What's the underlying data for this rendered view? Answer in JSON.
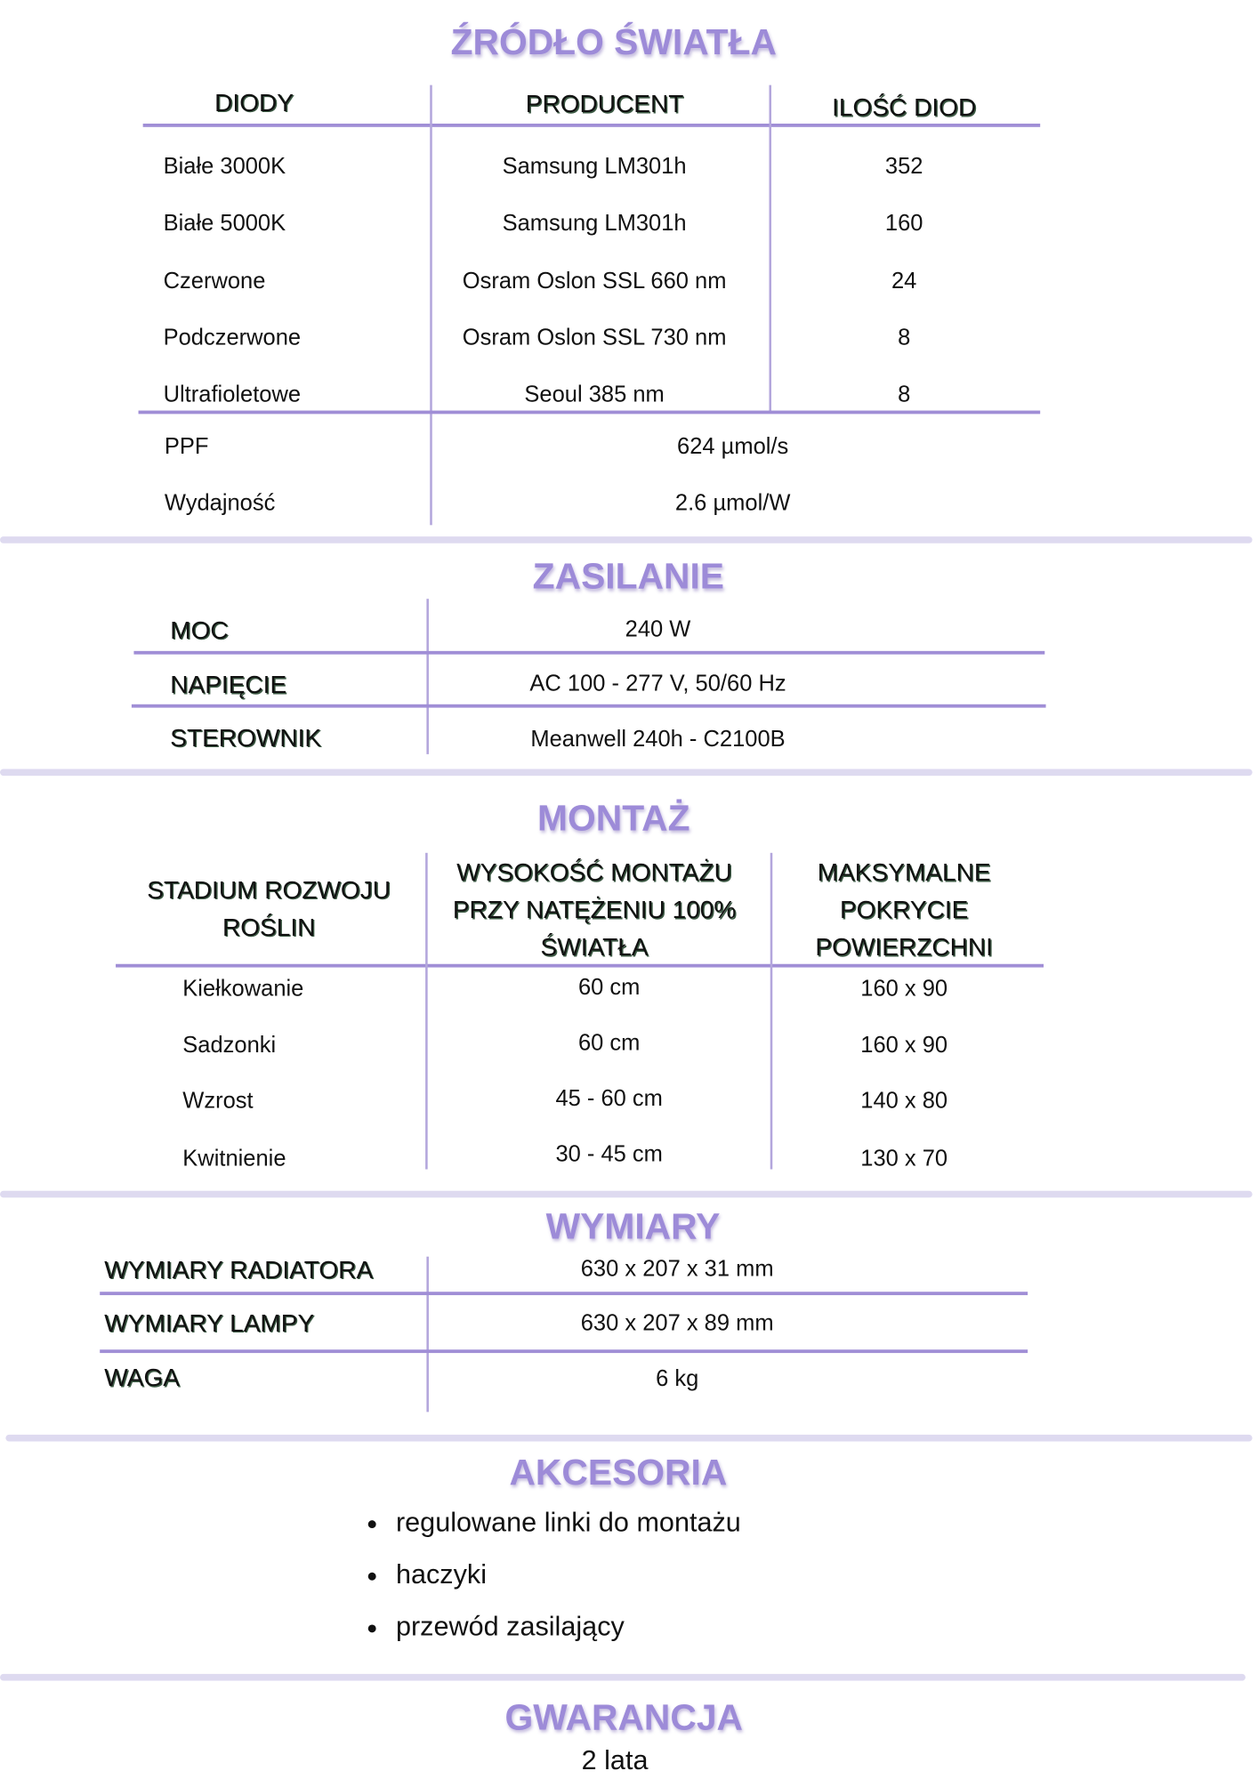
{
  "colors": {
    "accent": "#9d8bd8",
    "line": "#a08ed6",
    "separator": "#dedaf0"
  },
  "zrodlo": {
    "title": "ŹRÓDŁO ŚWIATŁA",
    "headers": [
      "DIODY",
      "PRODUCENT",
      "ILOŚĆ DIOD"
    ],
    "rows": [
      [
        "Białe 3000K",
        "Samsung LM301h",
        "352"
      ],
      [
        "Białe 5000K",
        "Samsung LM301h",
        "160"
      ],
      [
        "Czerwone",
        "Osram Oslon SSL 660 nm",
        "24"
      ],
      [
        "Podczerwone",
        "Osram Oslon SSL 730 nm",
        "8"
      ],
      [
        "Ultrafioletowe",
        "Seoul 385 nm",
        "8"
      ]
    ],
    "summary": [
      [
        "PPF",
        "624 µmol/s"
      ],
      [
        "Wydajność",
        "2.6 µmol/W"
      ]
    ]
  },
  "zasilanie": {
    "title": "ZASILANIE",
    "rows": [
      [
        "MOC",
        "240 W"
      ],
      [
        "NAPIĘCIE",
        "AC 100 - 277 V, 50/60 Hz"
      ],
      [
        "STEROWNIK",
        "Meanwell 240h - C2100B"
      ]
    ]
  },
  "montaz": {
    "title": "MONTAŻ",
    "headers": [
      "STADIUM ROZWOJU ROŚLIN",
      "WYSOKOŚĆ MONTAŻU PRZY NATĘŻENIU 100% ŚWIATŁA",
      "MAKSYMALNE POKRYCIE POWIERZCHNI"
    ],
    "rows": [
      [
        "Kiełkowanie",
        "60 cm",
        "160 x 90"
      ],
      [
        "Sadzonki",
        "60 cm",
        "160 x 90"
      ],
      [
        "Wzrost",
        "45 - 60 cm",
        "140 x 80"
      ],
      [
        "Kwitnienie",
        "30 - 45 cm",
        "130 x 70"
      ]
    ]
  },
  "wymiary": {
    "title": "WYMIARY",
    "rows": [
      [
        "WYMIARY RADIATORA",
        "630 x 207 x 31 mm"
      ],
      [
        "WYMIARY LAMPY",
        "630 x 207 x 89 mm"
      ],
      [
        "WAGA",
        "6 kg"
      ]
    ]
  },
  "akcesoria": {
    "title": "AKCESORIA",
    "items": [
      "regulowane linki do montażu",
      "haczyki",
      "przewód zasilający"
    ]
  },
  "gwarancja": {
    "title": "GWARANCJA",
    "value": "2 lata"
  }
}
